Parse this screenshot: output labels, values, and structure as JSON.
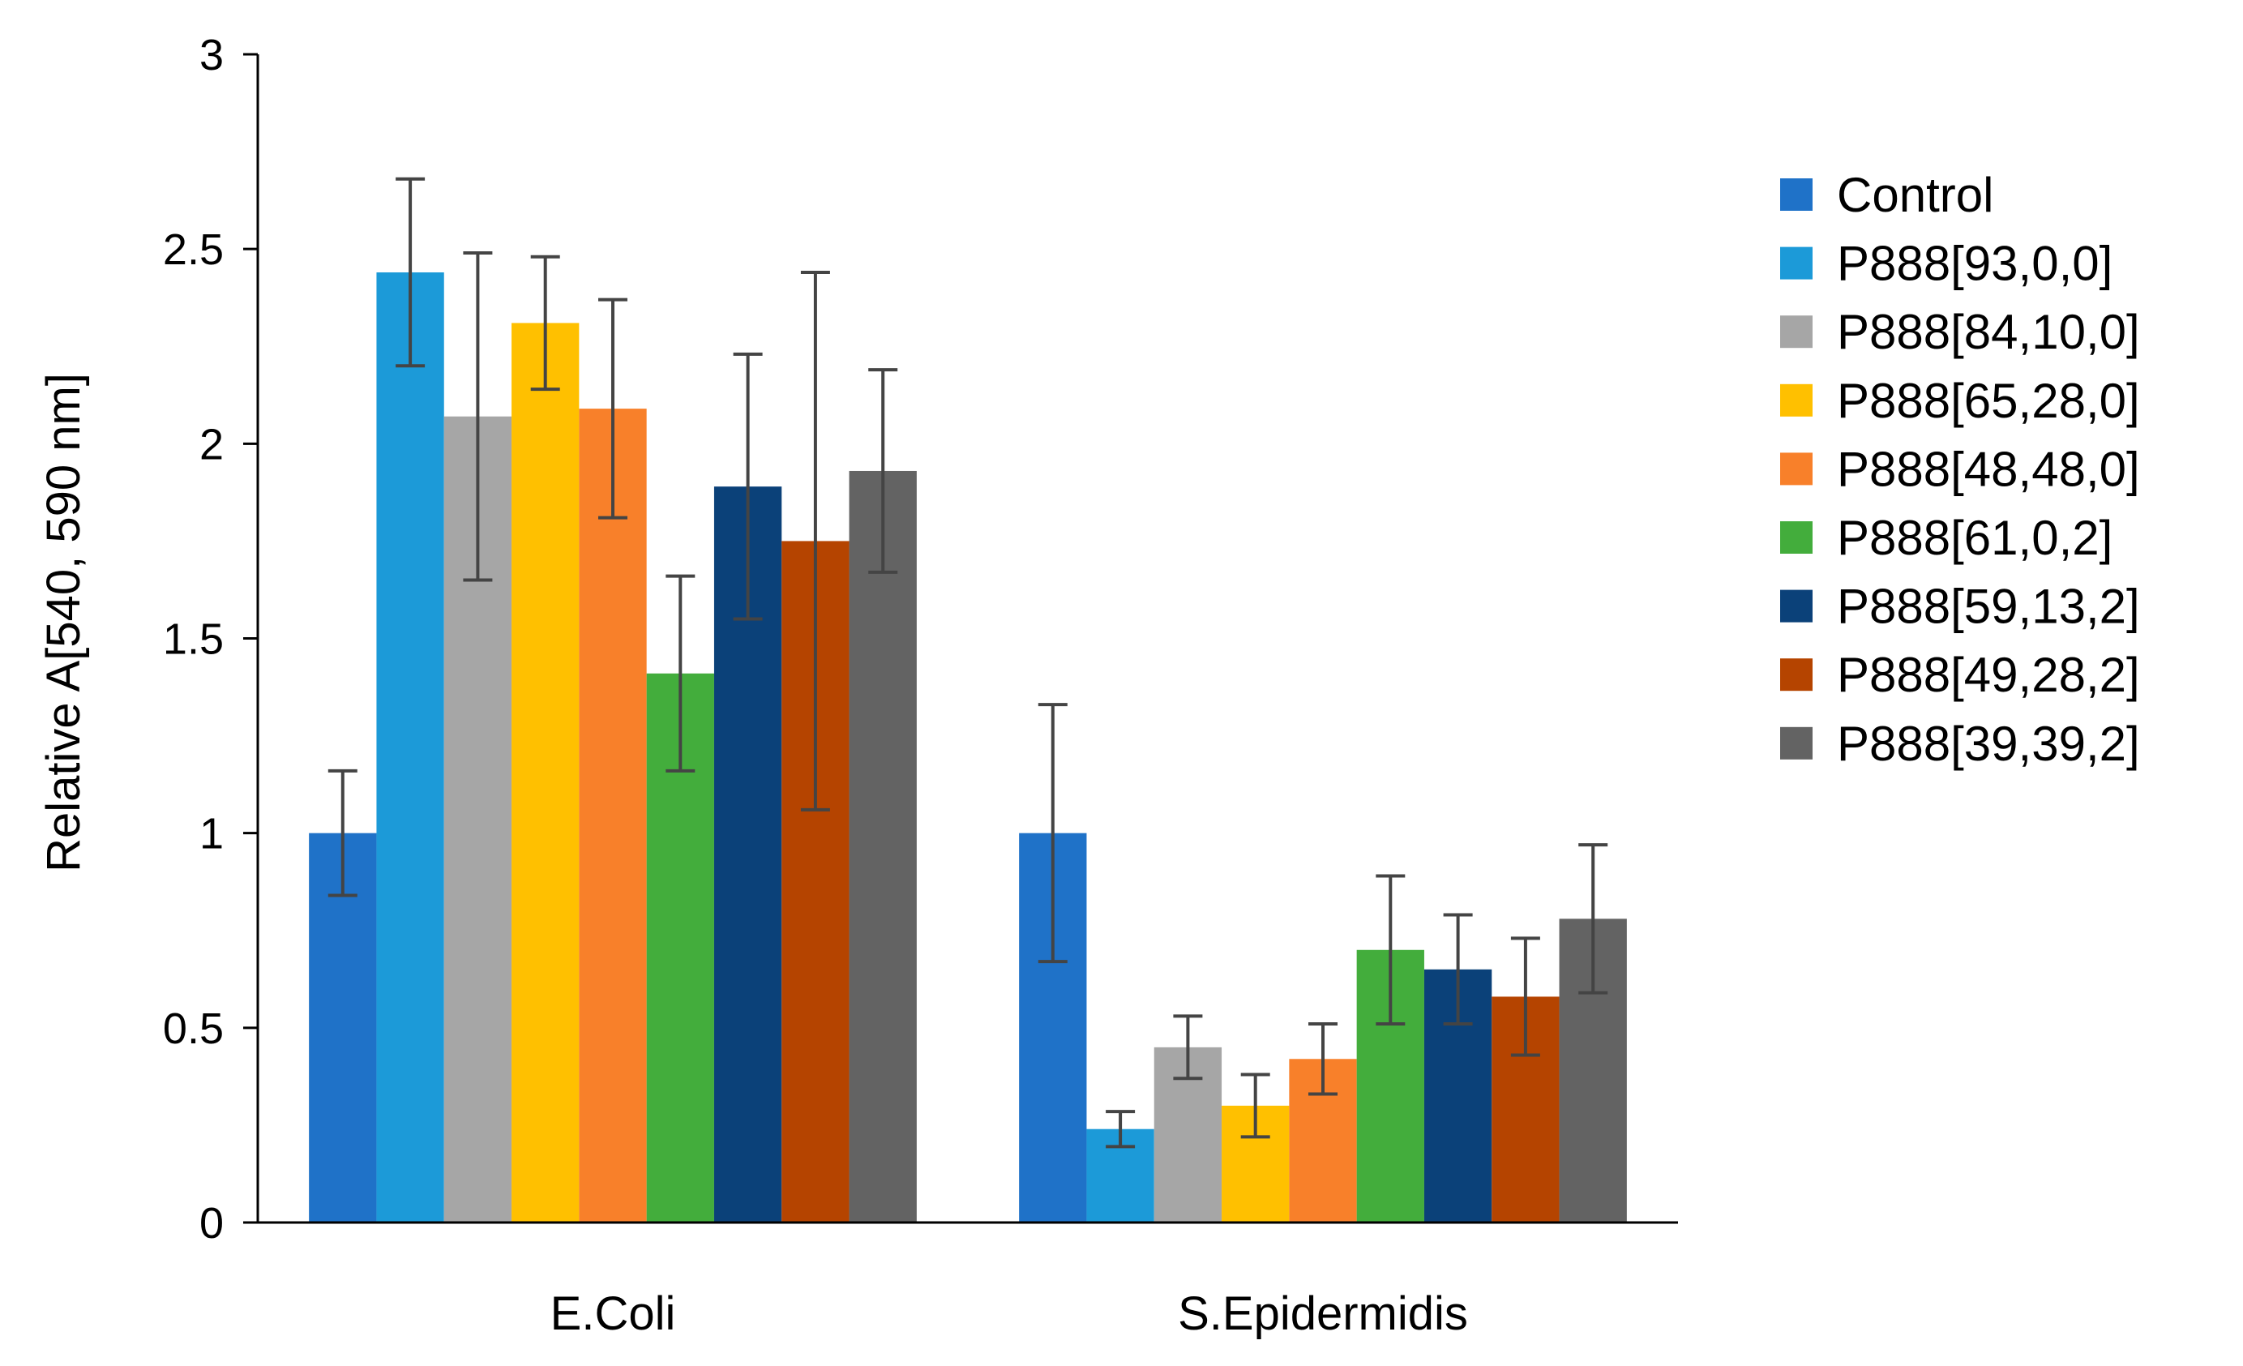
{
  "chart_data": {
    "type": "bar",
    "title": "",
    "xlabel": "",
    "ylabel": "Relative A[540, 590 nm]",
    "ylim": [
      0,
      3
    ],
    "yticks": [
      "0",
      "0.5",
      "1",
      "1.5",
      "2",
      "2.5",
      "3"
    ],
    "categories": [
      "E.Coli",
      "S.Epidermidis"
    ],
    "legend_position": "right",
    "series": [
      {
        "name": "Control",
        "color": "#1F72C8",
        "values": [
          1.0,
          1.0
        ],
        "errors": [
          0.16,
          0.33
        ]
      },
      {
        "name": "P888[93,0,0]",
        "color": "#1C9AD8",
        "values": [
          2.44,
          0.24
        ],
        "errors": [
          0.24,
          0.045
        ]
      },
      {
        "name": "P888[84,10,0]",
        "color": "#A6A6A6",
        "values": [
          2.07,
          0.45
        ],
        "errors": [
          0.42,
          0.08
        ]
      },
      {
        "name": "P888[65,28,0]",
        "color": "#FFC000",
        "values": [
          2.31,
          0.3
        ],
        "errors": [
          0.17,
          0.08
        ]
      },
      {
        "name": "P888[48,48,0]",
        "color": "#F8802A",
        "values": [
          2.09,
          0.42
        ],
        "errors": [
          0.28,
          0.09
        ]
      },
      {
        "name": "P888[61,0,2]",
        "color": "#43AD3C",
        "values": [
          1.41,
          0.7
        ],
        "errors": [
          0.25,
          0.19
        ]
      },
      {
        "name": "P888[59,13,2]",
        "color": "#0B4179",
        "values": [
          1.89,
          0.65
        ],
        "errors": [
          0.34,
          0.14
        ]
      },
      {
        "name": "P888[49,28,2]",
        "color": "#B54400",
        "values": [
          1.75,
          0.58
        ],
        "errors": [
          0.69,
          0.15
        ]
      },
      {
        "name": "P888[39,39,2]",
        "color": "#636363",
        "values": [
          1.93,
          0.78
        ],
        "errors": [
          0.26,
          0.19
        ]
      }
    ]
  }
}
